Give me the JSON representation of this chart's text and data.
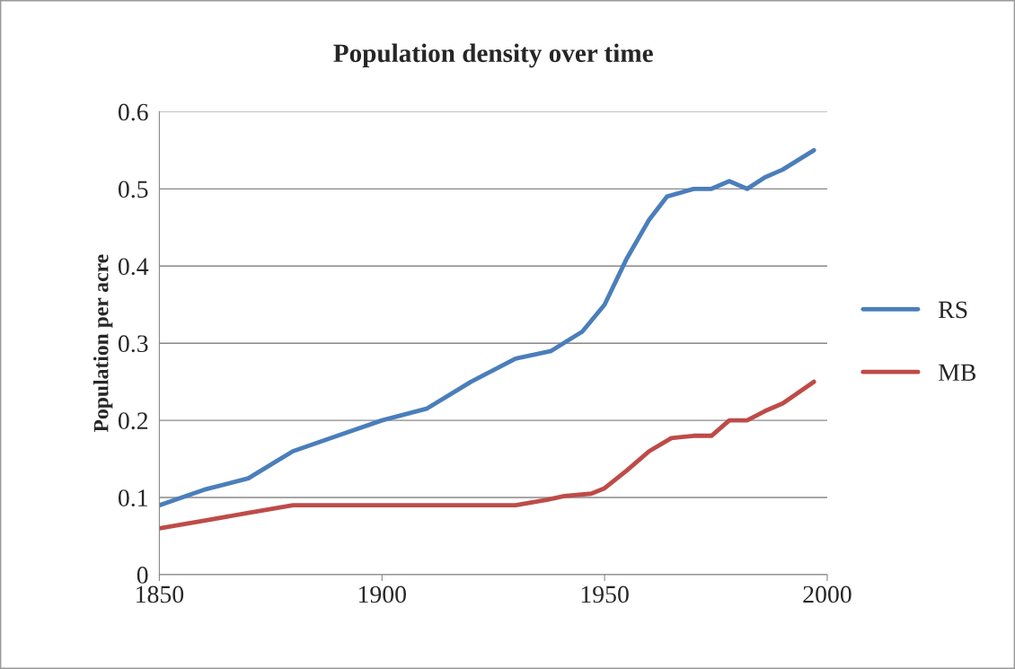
{
  "chart_data": {
    "type": "line",
    "title": "Population density over time",
    "ylabel": "Population per acre",
    "xlim": [
      1850,
      2000
    ],
    "xticks": [
      1850,
      1900,
      1950,
      2000
    ],
    "ylim": [
      0,
      0.6
    ],
    "yticks": [
      0,
      0.1,
      0.2,
      0.3,
      0.4,
      0.5,
      0.6
    ],
    "grid": "y",
    "legend": "right",
    "marker": "none",
    "line_style": "solid",
    "series": [
      {
        "name": "RS",
        "color": "#4a7ebb",
        "x": [
          1850,
          1860,
          1870,
          1880,
          1890,
          1900,
          1910,
          1920,
          1930,
          1938,
          1945,
          1950,
          1955,
          1960,
          1964,
          1970,
          1974,
          1978,
          1982,
          1986,
          1990,
          1997
        ],
        "values": [
          0.09,
          0.11,
          0.125,
          0.16,
          0.18,
          0.2,
          0.215,
          0.25,
          0.28,
          0.29,
          0.315,
          0.35,
          0.41,
          0.46,
          0.49,
          0.5,
          0.5,
          0.51,
          0.5,
          0.515,
          0.525,
          0.55
        ]
      },
      {
        "name": "MB",
        "color": "#be4b48",
        "x": [
          1850,
          1860,
          1870,
          1880,
          1890,
          1900,
          1910,
          1920,
          1930,
          1937,
          1941,
          1947,
          1950,
          1955,
          1960,
          1965,
          1970,
          1974,
          1978,
          1982,
          1986,
          1990,
          1997
        ],
        "values": [
          0.06,
          0.07,
          0.08,
          0.09,
          0.09,
          0.09,
          0.09,
          0.09,
          0.09,
          0.097,
          0.102,
          0.105,
          0.112,
          0.135,
          0.16,
          0.177,
          0.18,
          0.18,
          0.2,
          0.2,
          0.212,
          0.222,
          0.25
        ]
      }
    ]
  }
}
